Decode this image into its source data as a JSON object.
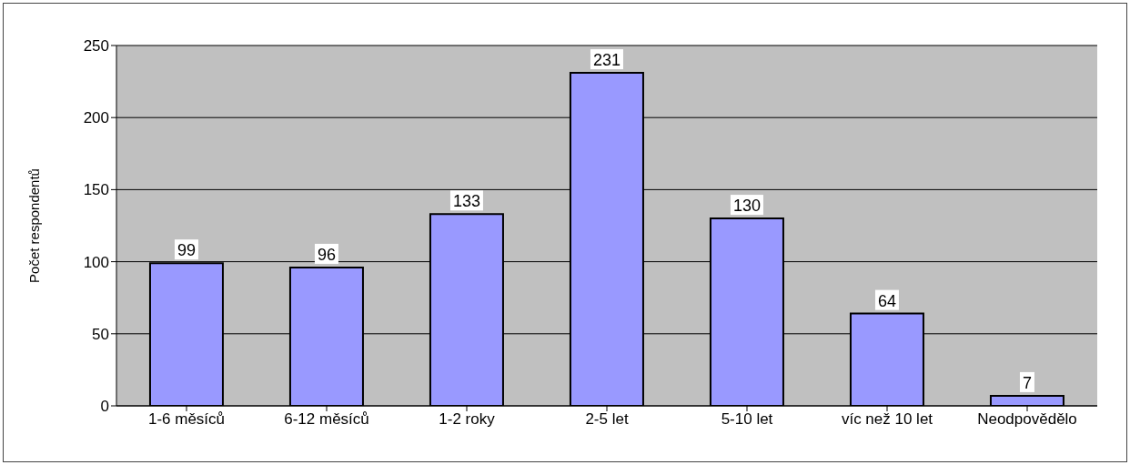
{
  "chart_data": {
    "type": "bar",
    "ylabel": "Počet respondentů",
    "categories": [
      "1-6 měsíců",
      "6-12 měsíců",
      "1-2 roky",
      "2-5 let",
      "5-10 let",
      "víc než 10 let",
      "Neodpovědělo"
    ],
    "values": [
      99,
      96,
      133,
      231,
      130,
      64,
      7
    ],
    "color": "#9999ff",
    "ylim": [
      0,
      250
    ],
    "yticks": [
      0,
      50,
      100,
      150,
      200,
      250
    ],
    "grid": "y",
    "data_labels": true,
    "legend": false
  }
}
